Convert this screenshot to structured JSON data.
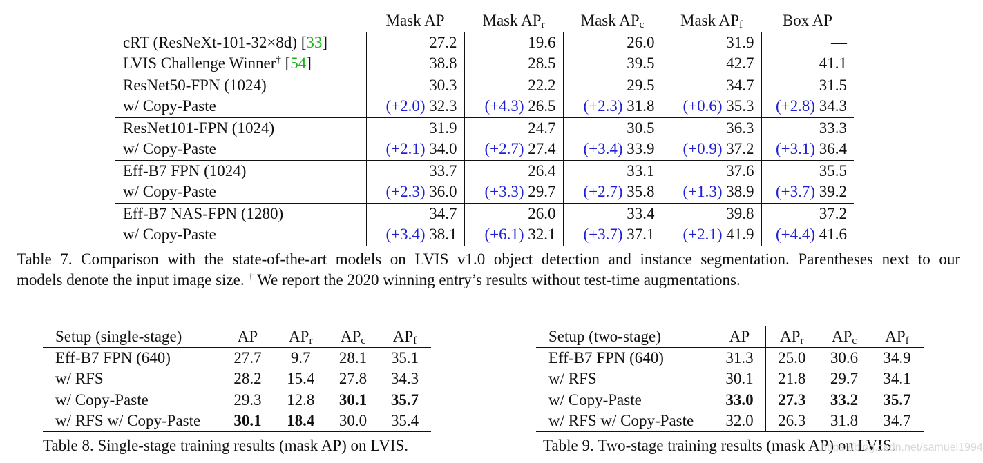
{
  "table7": {
    "header": [
      {
        "main": "Mask AP",
        "sub": ""
      },
      {
        "main": "Mask AP",
        "sub": "r"
      },
      {
        "main": "Mask AP",
        "sub": "c"
      },
      {
        "main": "Mask AP",
        "sub": "f"
      },
      {
        "main": "Box AP",
        "sub": ""
      }
    ],
    "rows": [
      {
        "label": "cRT (ResNeXt-101-32×8d) [",
        "ref": "33",
        "label_end": "]",
        "dagger": "",
        "values": [
          "27.2",
          "19.6",
          "26.0",
          "31.9",
          "—"
        ],
        "deltas": [
          "",
          "",
          "",
          "",
          ""
        ]
      },
      {
        "label": "LVIS Challenge Winner",
        "dagger": "†",
        "ref_pre": " [",
        "ref": "54",
        "label_end": "]",
        "values": [
          "38.8",
          "28.5",
          "39.5",
          "42.7",
          "41.1"
        ],
        "deltas": [
          "",
          "",
          "",
          "",
          ""
        ]
      },
      {
        "label": "ResNet50-FPN (1024)",
        "values": [
          "30.3",
          "22.2",
          "29.5",
          "34.7",
          "31.5"
        ],
        "deltas": [
          "",
          "",
          "",
          "",
          ""
        ]
      },
      {
        "label": "w/ Copy-Paste",
        "values": [
          "32.3",
          "26.5",
          "31.8",
          "35.3",
          "34.3"
        ],
        "deltas": [
          "(+2.0)",
          "(+4.3)",
          "(+2.3)",
          "(+0.6)",
          "(+2.8)"
        ]
      },
      {
        "label": "ResNet101-FPN (1024)",
        "values": [
          "31.9",
          "24.7",
          "30.5",
          "36.3",
          "33.3"
        ],
        "deltas": [
          "",
          "",
          "",
          "",
          ""
        ]
      },
      {
        "label": "w/ Copy-Paste",
        "values": [
          "34.0",
          "27.4",
          "33.9",
          "37.2",
          "36.4"
        ],
        "deltas": [
          "(+2.1)",
          "(+2.7)",
          "(+3.4)",
          "(+0.9)",
          "(+3.1)"
        ]
      },
      {
        "label": "Eff-B7 FPN (1024)",
        "values": [
          "33.7",
          "26.4",
          "33.1",
          "37.6",
          "35.5"
        ],
        "deltas": [
          "",
          "",
          "",
          "",
          ""
        ]
      },
      {
        "label": "w/ Copy-Paste",
        "values": [
          "36.0",
          "29.7",
          "35.8",
          "38.9",
          "39.2"
        ],
        "deltas": [
          "(+2.3)",
          "(+3.3)",
          "(+2.7)",
          "(+1.3)",
          "(+3.7)"
        ]
      },
      {
        "label": "Eff-B7 NAS-FPN (1280)",
        "values": [
          "34.7",
          "26.0",
          "33.4",
          "39.8",
          "37.2"
        ],
        "deltas": [
          "",
          "",
          "",
          "",
          ""
        ]
      },
      {
        "label": "w/ Copy-Paste",
        "values": [
          "38.1",
          "32.1",
          "37.1",
          "41.9",
          "41.6"
        ],
        "deltas": [
          "(+3.4)",
          "(+6.1)",
          "(+3.7)",
          "(+2.1)",
          "(+4.4)"
        ]
      }
    ],
    "caption_line1": "Table 7. Comparison with the state-of-the-art models on LVIS v1.0 object detection and instance segmentation. Parentheses next to our",
    "caption_line2a": "models denote the input image size. ",
    "caption_dagger": "†",
    "caption_line2b": " We report the 2020 winning entry’s results without test-time augmentations."
  },
  "table8": {
    "header": {
      "setup": "Setup (single-stage)",
      "cols": [
        {
          "main": "AP",
          "sub": ""
        },
        {
          "main": "AP",
          "sub": "r"
        },
        {
          "main": "AP",
          "sub": "c"
        },
        {
          "main": "AP",
          "sub": "f"
        }
      ]
    },
    "rows": [
      {
        "label": "Eff-B7 FPN (640)",
        "values": [
          "27.7",
          "9.7",
          "28.1",
          "35.1"
        ]
      },
      {
        "label": "w/ RFS",
        "values": [
          "28.2",
          "15.4",
          "27.8",
          "34.3"
        ]
      },
      {
        "label": "w/ Copy-Paste",
        "values": [
          "29.3",
          "12.8",
          "30.1",
          "35.7"
        ]
      },
      {
        "label": "w/ RFS w/ Copy-Paste",
        "values": [
          "30.1",
          "18.4",
          "30.0",
          "35.4"
        ]
      }
    ],
    "caption": "Table 8. Single-stage training results (mask AP) on LVIS."
  },
  "table9": {
    "header": {
      "setup": "Setup (two-stage)",
      "cols": [
        {
          "main": "AP",
          "sub": ""
        },
        {
          "main": "AP",
          "sub": "r"
        },
        {
          "main": "AP",
          "sub": "c"
        },
        {
          "main": "AP",
          "sub": "f"
        }
      ]
    },
    "rows": [
      {
        "label": "Eff-B7 FPN (640)",
        "values": [
          "31.3",
          "25.0",
          "30.6",
          "34.9"
        ]
      },
      {
        "label": "w/ RFS",
        "values": [
          "30.1",
          "21.8",
          "29.7",
          "34.1"
        ]
      },
      {
        "label": "w/ Copy-Paste",
        "values": [
          "33.0",
          "27.3",
          "33.2",
          "35.7"
        ]
      },
      {
        "label": "w/ RFS w/ Copy-Paste",
        "values": [
          "32.0",
          "26.3",
          "31.8",
          "34.7"
        ]
      }
    ],
    "caption": "Table 9. Two-stage training results (mask AP) on LVIS."
  },
  "watermark": "https://blog.csdn.net/samuel1994",
  "colors": {
    "delta": "#1f1fd6",
    "ref": "#19b219"
  }
}
